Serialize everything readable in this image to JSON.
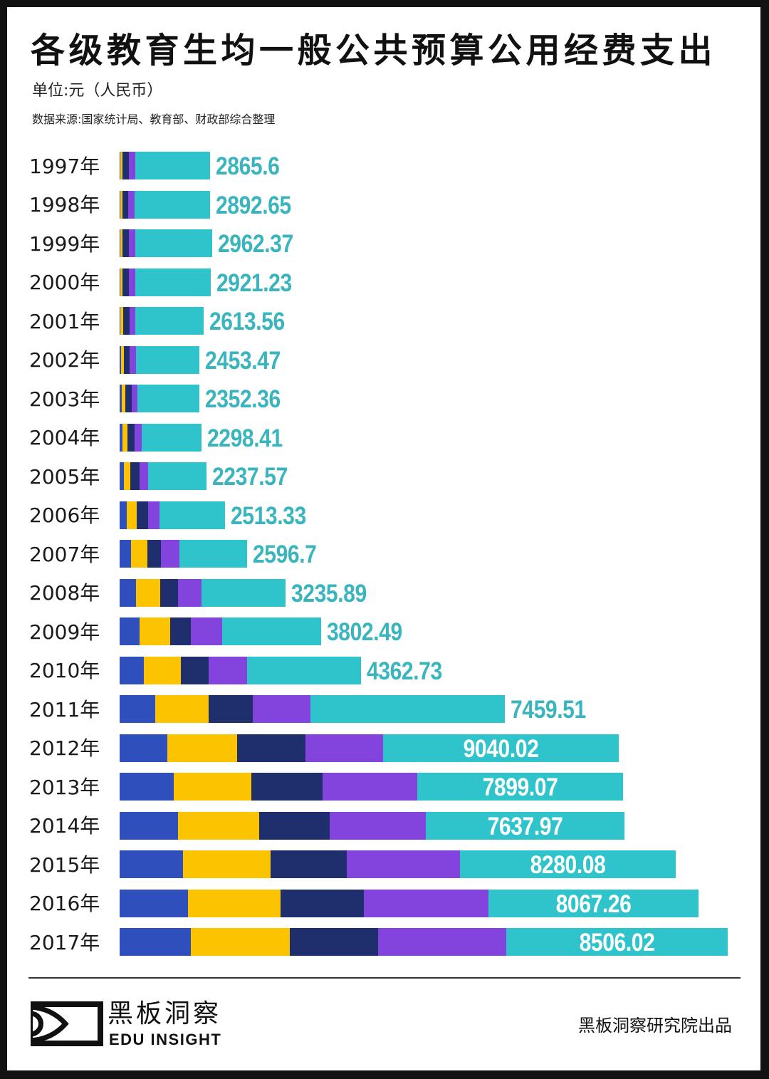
{
  "chart_data": {
    "type": "bar",
    "orientation": "horizontal",
    "stacked": true,
    "title": "各级教育生均一般公共预算公用经费支出",
    "unit": "单位:元（人民币）",
    "source": "数据来源:国家统计局、教育部、财政部综合整理",
    "xlabel": "",
    "ylabel": "",
    "grid": false,
    "legend": "none",
    "categories": [
      "1997年",
      "1998年",
      "1999年",
      "2000年",
      "2001年",
      "2002年",
      "2003年",
      "2004年",
      "2005年",
      "2006年",
      "2007年",
      "2008年",
      "2009年",
      "2010年",
      "2011年",
      "2012年",
      "2013年",
      "2014年",
      "2015年",
      "2016年",
      "2017年"
    ],
    "series": [
      {
        "name": "",
        "color": "#2E4FBC",
        "values": [
          30,
          30,
          30,
          30,
          35,
          45,
          70,
          110,
          165,
          270,
          425,
          616,
          760,
          930,
          1366,
          1829,
          2068,
          2242,
          2434,
          2611,
          2732
        ]
      },
      {
        "name": "",
        "color": "#FBC300",
        "values": [
          90,
          90,
          90,
          90,
          100,
          125,
          140,
          185,
          235,
          380,
          630,
          937,
          1180,
          1414,
          2045,
          2692,
          2982,
          3121,
          3361,
          3562,
          3793
        ]
      },
      {
        "name": "",
        "color": "#1F2F6E",
        "values": [
          230,
          220,
          230,
          230,
          240,
          225,
          245,
          270,
          360,
          440,
          520,
          690,
          800,
          1070,
          1700,
          2600,
          2740,
          2710,
          2923,
          3198,
          3396
        ]
      },
      {
        "name": "",
        "color": "#8244DD",
        "values": [
          260,
          240,
          250,
          240,
          230,
          225,
          240,
          275,
          330,
          440,
          710,
          900,
          1200,
          1480,
          2220,
          2990,
          3620,
          3670,
          4350,
          4779,
          4909
        ]
      },
      {
        "name": "",
        "color": "#2FC4CB",
        "values": [
          2865.6,
          2892.65,
          2962.37,
          2921.23,
          2613.56,
          2453.47,
          2352.36,
          2298.41,
          2237.57,
          2513.33,
          2596.7,
          3235.89,
          3802.49,
          4362.73,
          7459.51,
          9040.02,
          7899.07,
          7637.97,
          8280.08,
          8067.26,
          8506.02
        ]
      }
    ],
    "data_labels": [
      "2865.6",
      "2892.65",
      "2962.37",
      "2921.23",
      "2613.56",
      "2453.47",
      "2352.36",
      "2298.41",
      "2237.57",
      "2513.33",
      "2596.7",
      "3235.89",
      "3802.49",
      "4362.73",
      "7459.51",
      "9040.02",
      "7899.07",
      "7637.97",
      "8280.08",
      "8067.26",
      "8506.02"
    ],
    "data_label_series_index": 4
  },
  "colors": {
    "label_outside": "#3AB5BE",
    "label_inside": "#FFFFFF",
    "frame": "#121212"
  },
  "footer": {
    "logo_icon": "eye-in-box-logo",
    "brand_cn": "黑板洞察",
    "brand_en": "EDU INSIGHT",
    "credit": "黑板洞察研究院出品"
  }
}
